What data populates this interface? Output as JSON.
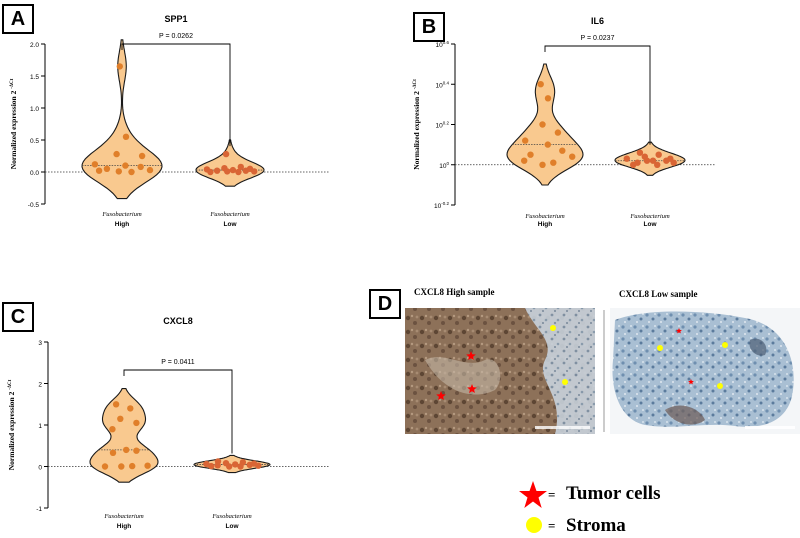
{
  "panels": {
    "a": {
      "letter": "A"
    },
    "b": {
      "letter": "B"
    },
    "c": {
      "letter": "C"
    },
    "d": {
      "letter": "D"
    }
  },
  "chart_data": [
    {
      "id": "spp1",
      "type": "violin",
      "title": "SPP1",
      "ylabel": "Normalized expression 2",
      "ylabel_sup": "-ΔCt",
      "categories": [
        {
          "italic": "Fusobacterium",
          "bold": "High"
        },
        {
          "italic": "Fusobacterium",
          "bold": "Low"
        }
      ],
      "yticks": [
        "2.0",
        "1.5",
        "1.0",
        "0.5",
        "0.0",
        "-0.5"
      ],
      "ylim": [
        -0.5,
        2.0
      ],
      "pvalue": "P = 0.0262",
      "series": [
        {
          "points": [
            1.65,
            0.55,
            0.28,
            0.25,
            0.12,
            0.1,
            0.08,
            0.05,
            0.03,
            0.02,
            0.0,
            0.01
          ]
        },
        {
          "points": [
            0.28,
            0.08,
            0.06,
            0.05,
            0.04,
            0.03,
            0.02,
            0.02,
            0.01,
            0.0,
            0.0,
            0.01
          ]
        }
      ]
    },
    {
      "id": "il6",
      "type": "violin",
      "title": "IL6",
      "ylabel": "Normalized expression 2",
      "ylabel_sup": "-ΔCt",
      "categories": [
        {
          "italic": "Fusobacterium",
          "bold": "High"
        },
        {
          "italic": "Fusobacterium",
          "bold": "Low"
        }
      ],
      "yticks": [
        "10^0.6",
        "10^0.4",
        "10^0.2",
        "10^0",
        "10^-0.2"
      ],
      "ylim": [
        -0.2,
        0.6
      ],
      "yscale": "log",
      "pvalue": "P = 0.0237",
      "series": [
        {
          "points": [
            0.4,
            0.33,
            0.2,
            0.16,
            0.12,
            0.1,
            0.07,
            0.05,
            0.04,
            0.02,
            0.01,
            0.0
          ]
        },
        {
          "points": [
            0.06,
            0.05,
            0.04,
            0.03,
            0.03,
            0.02,
            0.02,
            0.01,
            0.01,
            0.0,
            0.0,
            0.02
          ]
        }
      ]
    },
    {
      "id": "cxcl8",
      "type": "violin",
      "title": "CXCL8",
      "ylabel": "Normalized expression 2",
      "ylabel_sup": "-ΔCt",
      "categories": [
        {
          "italic": "Fusobacterium",
          "bold": "High"
        },
        {
          "italic": "Fusobacterium",
          "bold": "Low"
        }
      ],
      "yticks": [
        "3",
        "2",
        "1",
        "0",
        "-1"
      ],
      "ylim": [
        -1,
        3
      ],
      "pvalue": "P = 0.0411",
      "series": [
        {
          "points": [
            1.5,
            1.4,
            1.15,
            1.05,
            0.9,
            0.4,
            0.38,
            0.33,
            0.02,
            0.0,
            0.01,
            0.0
          ]
        },
        {
          "points": [
            0.12,
            0.1,
            0.08,
            0.07,
            0.06,
            0.05,
            0.04,
            0.03,
            0.02,
            0.01,
            0.0,
            0.0
          ]
        }
      ]
    }
  ],
  "histology": {
    "high_title": "CXCL8 High sample",
    "low_title": "CXCL8 Low sample"
  },
  "legend": {
    "tumor_label": "Tumor cells",
    "stroma_label": "Stroma",
    "equals": "=",
    "tumor_color": "#ff0000",
    "stroma_color": "#ffff00"
  },
  "colors": {
    "violin_fill": "#f9c98f",
    "violin_stroke": "#1a1a1a",
    "point": "#e07f2a",
    "point_low": "#d96535"
  }
}
